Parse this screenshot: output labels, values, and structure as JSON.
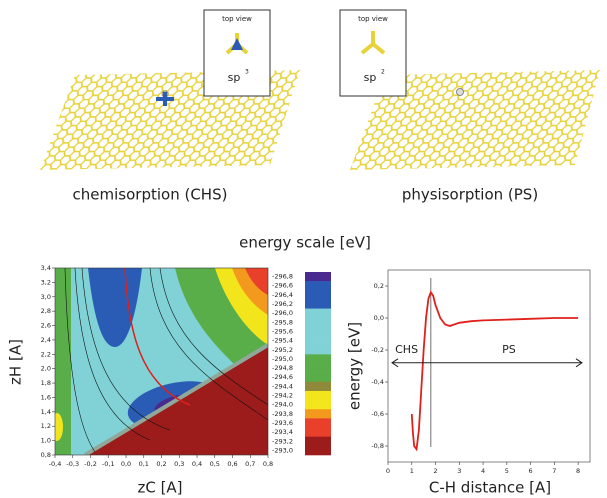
{
  "panels": [
    {
      "inset_title": "top view",
      "inset_label": "sp",
      "inset_sup": "3",
      "caption": "chemisorption (CHS)"
    },
    {
      "inset_title": "top view",
      "inset_label": "sp",
      "inset_sup": "2",
      "caption": "physisorption (PS)"
    }
  ],
  "scale_title": "energy scale [eV]",
  "chart_data": [
    {
      "type": "contour",
      "xlabel": "zC [A]",
      "ylabel": "zH [A]",
      "xlim": [
        -0.4,
        0.8
      ],
      "xticks": [
        {
          "value": -0.4,
          "label": "-0,4"
        },
        {
          "value": -0.3,
          "label": "-0,3"
        },
        {
          "value": -0.2,
          "label": "-0,2"
        },
        {
          "value": -0.1,
          "label": "-0,1"
        },
        {
          "value": 0,
          "label": "0,0"
        },
        {
          "value": 0.1,
          "label": "0,1"
        },
        {
          "value": 0.2,
          "label": "0,2"
        },
        {
          "value": 0.3,
          "label": "0,3"
        },
        {
          "value": 0.4,
          "label": "0,4"
        },
        {
          "value": 0.5,
          "label": "0,5"
        },
        {
          "value": 0.6,
          "label": "0,6"
        },
        {
          "value": 0.7,
          "label": "0,7"
        },
        {
          "value": 0.8,
          "label": "0,8"
        }
      ],
      "ylim": [
        0.8,
        3.4
      ],
      "yticks": [
        {
          "value": 0.8,
          "label": "0,8"
        },
        {
          "value": 1.0,
          "label": "1,0"
        },
        {
          "value": 1.2,
          "label": "1,2"
        },
        {
          "value": 1.4,
          "label": "1,4"
        },
        {
          "value": 1.6,
          "label": "1,6"
        },
        {
          "value": 1.8,
          "label": "1,8"
        },
        {
          "value": 2.0,
          "label": "2,0"
        },
        {
          "value": 2.2,
          "label": "2,2"
        },
        {
          "value": 2.4,
          "label": "2,4"
        },
        {
          "value": 2.6,
          "label": "2,6"
        },
        {
          "value": 2.8,
          "label": "2,8"
        },
        {
          "value": 3.0,
          "label": "3,0"
        },
        {
          "value": 3.2,
          "label": "3,2"
        },
        {
          "value": 3.4,
          "label": "3,4"
        }
      ],
      "colorbar": [
        {
          "value": -296.8,
          "label": "-296,8"
        },
        {
          "value": -296.6,
          "label": "-296,6"
        },
        {
          "value": -296.4,
          "label": "-296,4"
        },
        {
          "value": -296.2,
          "label": "-296,2"
        },
        {
          "value": -296.0,
          "label": "-296,0"
        },
        {
          "value": -295.8,
          "label": "-295,8"
        },
        {
          "value": -295.6,
          "label": "-295,6"
        },
        {
          "value": -295.4,
          "label": "-295,4"
        },
        {
          "value": -295.2,
          "label": "-295,2"
        },
        {
          "value": -295.0,
          "label": "-295,0"
        },
        {
          "value": -294.8,
          "label": "-294,8"
        },
        {
          "value": -294.6,
          "label": "-294,6"
        },
        {
          "value": -294.4,
          "label": "-294,4"
        },
        {
          "value": -294.2,
          "label": "-294,2"
        },
        {
          "value": -294.0,
          "label": "-294,0"
        },
        {
          "value": -293.8,
          "label": "-293,8"
        },
        {
          "value": -293.6,
          "label": "-293,6"
        },
        {
          "value": -293.4,
          "label": "-293,4"
        },
        {
          "value": -293.2,
          "label": "-293,2"
        },
        {
          "value": -293.0,
          "label": "-293,0"
        }
      ],
      "colorbar_colors": [
        "#4a2a8e",
        "#2a5cb6",
        "#2a5cb6",
        "#2a5cb6",
        "#80d2d6",
        "#80d2d6",
        "#80d2d6",
        "#80d2d6",
        "#80d2d6",
        "#5aae4a",
        "#5aae4a",
        "#5aae4a",
        "#8e8a3a",
        "#f3e51c",
        "#f3e51c",
        "#f39a1e",
        "#e8402a",
        "#e8402a",
        "#9c1c1c",
        "#9c1c1c"
      ]
    },
    {
      "type": "line",
      "xlabel": "C-H distance [A]",
      "ylabel": "energy [eV]",
      "xlim": [
        0,
        8.5
      ],
      "xticks": [
        0,
        1,
        2,
        3,
        4,
        5,
        6,
        7,
        8
      ],
      "ylim": [
        -0.9,
        0.3
      ],
      "yticks": [
        {
          "value": -0.8,
          "label": "-0,8"
        },
        {
          "value": -0.6,
          "label": "-0,6"
        },
        {
          "value": -0.4,
          "label": "-0,4"
        },
        {
          "value": -0.2,
          "label": "-0,2"
        },
        {
          "value": 0,
          "label": "0,0"
        },
        {
          "value": 0.2,
          "label": "0,2"
        }
      ],
      "x": [
        1.0,
        1.05,
        1.1,
        1.2,
        1.3,
        1.4,
        1.5,
        1.6,
        1.7,
        1.8,
        1.9,
        2.0,
        2.2,
        2.4,
        2.6,
        2.8,
        3.0,
        3.5,
        4,
        5,
        6,
        7,
        8
      ],
      "series": [
        {
          "color": "#e0201a",
          "values": [
            -0.6,
            -0.72,
            -0.8,
            -0.82,
            -0.7,
            -0.45,
            -0.2,
            0.0,
            0.12,
            0.16,
            0.14,
            0.08,
            0.0,
            -0.04,
            -0.05,
            -0.04,
            -0.03,
            -0.02,
            -0.015,
            -0.01,
            -0.005,
            0,
            0
          ]
        }
      ],
      "marker_x": 1.8,
      "annotations": [
        {
          "text": "CHS",
          "x": 0.3,
          "y": -0.2
        },
        {
          "text": "PS",
          "x": 4.8,
          "y": -0.2
        }
      ]
    }
  ]
}
